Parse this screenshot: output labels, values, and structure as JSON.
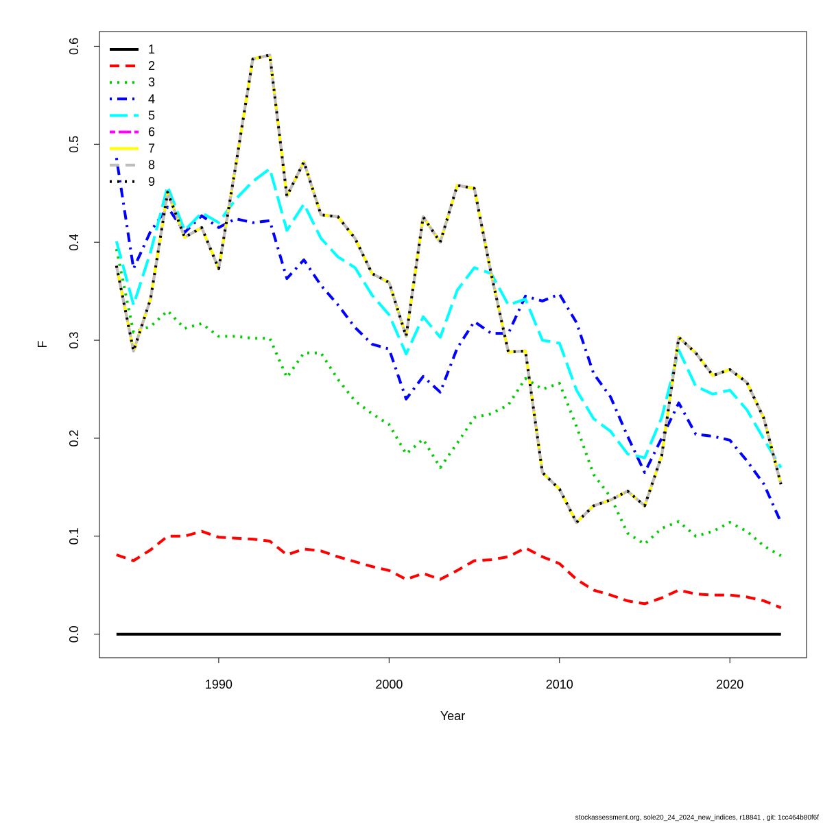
{
  "chart_data": {
    "type": "line",
    "xlabel": "Year",
    "ylabel": "F",
    "xlim": [
      1983,
      2024.5
    ],
    "ylim": [
      -0.024,
      0.615
    ],
    "x_ticks": [
      1990,
      2000,
      2010,
      2020
    ],
    "y_ticks": [
      0.0,
      0.1,
      0.2,
      0.3,
      0.4,
      0.5,
      0.6
    ],
    "y_tick_labels": [
      "0.0",
      "0.1",
      "0.2",
      "0.3",
      "0.4",
      "0.5",
      "0.6"
    ],
    "legend_position": "top-left",
    "grid": false,
    "x": [
      1984,
      1985,
      1986,
      1987,
      1988,
      1989,
      1990,
      1991,
      1992,
      1993,
      1994,
      1995,
      1996,
      1997,
      1998,
      1999,
      2000,
      2001,
      2002,
      2003,
      2004,
      2005,
      2006,
      2007,
      2008,
      2009,
      2010,
      2011,
      2012,
      2013,
      2014,
      2015,
      2016,
      2017,
      2018,
      2019,
      2020,
      2021,
      2022,
      2023
    ],
    "series": [
      {
        "name": "1",
        "color": "#000000",
        "dash": "solid",
        "values": [
          0,
          0,
          0,
          0,
          0,
          0,
          0,
          0,
          0,
          0,
          0,
          0,
          0,
          0,
          0,
          0,
          0,
          0,
          0,
          0,
          0,
          0,
          0,
          0,
          0,
          0,
          0,
          0,
          0,
          0,
          0,
          0,
          0,
          0,
          0,
          0,
          0,
          0,
          0,
          0
        ]
      },
      {
        "name": "2",
        "color": "#ff0000",
        "dash": "dashed",
        "values": [
          0.081,
          0.075,
          0.086,
          0.1,
          0.1,
          0.105,
          0.099,
          0.098,
          0.097,
          0.095,
          0.081,
          0.087,
          0.085,
          0.079,
          0.074,
          0.069,
          0.065,
          0.056,
          0.062,
          0.056,
          0.065,
          0.075,
          0.076,
          0.079,
          0.088,
          0.079,
          0.072,
          0.056,
          0.045,
          0.04,
          0.034,
          0.031,
          0.037,
          0.045,
          0.041,
          0.04,
          0.04,
          0.038,
          0.034,
          0.027
        ]
      },
      {
        "name": "3",
        "color": "#00cd00",
        "dash": "dotted",
        "values": [
          0.393,
          0.308,
          0.314,
          0.33,
          0.312,
          0.317,
          0.304,
          0.304,
          0.302,
          0.302,
          0.262,
          0.287,
          0.287,
          0.26,
          0.238,
          0.225,
          0.214,
          0.184,
          0.199,
          0.17,
          0.195,
          0.221,
          0.225,
          0.234,
          0.261,
          0.25,
          0.256,
          0.212,
          0.163,
          0.14,
          0.103,
          0.092,
          0.108,
          0.115,
          0.1,
          0.105,
          0.114,
          0.105,
          0.09,
          0.08
        ]
      },
      {
        "name": "4",
        "color": "#0000ff",
        "dash": "dashdot",
        "values": [
          0.486,
          0.373,
          0.411,
          0.436,
          0.41,
          0.427,
          0.415,
          0.424,
          0.42,
          0.422,
          0.363,
          0.382,
          0.356,
          0.336,
          0.313,
          0.296,
          0.291,
          0.24,
          0.263,
          0.247,
          0.292,
          0.319,
          0.307,
          0.307,
          0.345,
          0.34,
          0.347,
          0.318,
          0.266,
          0.242,
          0.202,
          0.165,
          0.2,
          0.236,
          0.204,
          0.202,
          0.198,
          0.177,
          0.153,
          0.114
        ]
      },
      {
        "name": "5",
        "color": "#00ffff",
        "dash": "longdash",
        "values": [
          0.401,
          0.336,
          0.39,
          0.457,
          0.412,
          0.43,
          0.42,
          0.444,
          0.462,
          0.475,
          0.412,
          0.439,
          0.404,
          0.385,
          0.374,
          0.346,
          0.326,
          0.286,
          0.324,
          0.303,
          0.351,
          0.374,
          0.368,
          0.336,
          0.342,
          0.3,
          0.297,
          0.249,
          0.22,
          0.207,
          0.184,
          0.18,
          0.221,
          0.29,
          0.253,
          0.245,
          0.249,
          0.229,
          0.199,
          0.17
        ]
      },
      {
        "name": "6",
        "color": "#ff00ff",
        "dash": "twodash",
        "values": [
          0.376,
          0.289,
          0.342,
          0.451,
          0.405,
          0.415,
          0.373,
          0.478,
          0.587,
          0.591,
          0.447,
          0.482,
          0.428,
          0.426,
          0.404,
          0.368,
          0.359,
          0.304,
          0.426,
          0.4,
          0.458,
          0.455,
          0.367,
          0.288,
          0.289,
          0.165,
          0.148,
          0.114,
          0.131,
          0.137,
          0.146,
          0.131,
          0.182,
          0.303,
          0.287,
          0.264,
          0.27,
          0.257,
          0.22,
          0.153
        ]
      },
      {
        "name": "7",
        "color": "#ffff00",
        "dash": "solid",
        "values": [
          0.376,
          0.289,
          0.342,
          0.451,
          0.405,
          0.415,
          0.373,
          0.478,
          0.587,
          0.591,
          0.447,
          0.482,
          0.428,
          0.426,
          0.404,
          0.368,
          0.359,
          0.304,
          0.426,
          0.4,
          0.458,
          0.455,
          0.367,
          0.288,
          0.289,
          0.165,
          0.148,
          0.114,
          0.131,
          0.137,
          0.146,
          0.131,
          0.182,
          0.303,
          0.287,
          0.264,
          0.27,
          0.257,
          0.22,
          0.153
        ]
      },
      {
        "name": "8",
        "color": "#bebebe",
        "dash": "dashed",
        "values": [
          0.376,
          0.289,
          0.342,
          0.451,
          0.405,
          0.415,
          0.373,
          0.478,
          0.587,
          0.591,
          0.447,
          0.482,
          0.428,
          0.426,
          0.404,
          0.368,
          0.359,
          0.304,
          0.426,
          0.4,
          0.458,
          0.455,
          0.367,
          0.288,
          0.289,
          0.165,
          0.148,
          0.114,
          0.131,
          0.137,
          0.146,
          0.131,
          0.182,
          0.303,
          0.287,
          0.264,
          0.27,
          0.257,
          0.22,
          0.153
        ]
      },
      {
        "name": "9",
        "color": "#000000",
        "dash": "dotted",
        "values": [
          0.376,
          0.289,
          0.342,
          0.451,
          0.405,
          0.415,
          0.373,
          0.478,
          0.587,
          0.591,
          0.447,
          0.482,
          0.428,
          0.426,
          0.404,
          0.368,
          0.359,
          0.304,
          0.426,
          0.4,
          0.458,
          0.455,
          0.367,
          0.288,
          0.289,
          0.165,
          0.148,
          0.114,
          0.131,
          0.137,
          0.146,
          0.131,
          0.182,
          0.303,
          0.287,
          0.264,
          0.27,
          0.257,
          0.22,
          0.153
        ]
      }
    ]
  },
  "footer_text": "stockassessment.org, sole20_24_2024_new_indices, r18841 , git: 1cc464b80f6f"
}
